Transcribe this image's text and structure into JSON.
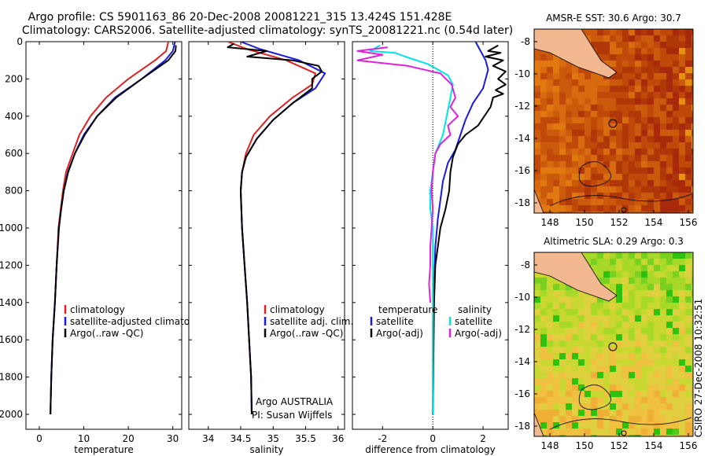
{
  "title": {
    "line1": "Argo profile: CS 5901163_86 20-Dec-2008 20081221_315 13.424S 151.428E",
    "line2": "Climatology: CARS2006. Satellite-adjusted climatology: synTS_20081221.nc (0.54d later)"
  },
  "footer_stamp": "CSIRO 27-Dec-2008 10:32:51",
  "colors": {
    "clim": "#e02020",
    "sat": "#1a1ae0",
    "argo": "#000000",
    "sat_s": "#00e5e5",
    "argo_s": "#e020e0"
  },
  "chart_data": [
    {
      "type": "line",
      "xlabel": "temperature",
      "xlim": [
        -3,
        32
      ],
      "ylim": [
        0,
        2080
      ],
      "xticks": [
        0,
        10,
        20,
        30
      ],
      "yticks": [
        0,
        200,
        400,
        600,
        800,
        1000,
        1200,
        1400,
        1600,
        1800,
        2000
      ],
      "legend": [
        "climatology",
        "satellite-adjusted climatology",
        "Argo(..raw -QC)"
      ],
      "series": [
        {
          "name": "climatology",
          "color": "clim",
          "points": [
            [
              29,
              0
            ],
            [
              28.5,
              50
            ],
            [
              26,
              100
            ],
            [
              20,
              200
            ],
            [
              15,
              300
            ],
            [
              11.5,
              400
            ],
            [
              9,
              500
            ],
            [
              7.5,
              600
            ],
            [
              6,
              700
            ],
            [
              5.3,
              800
            ],
            [
              4.8,
              900
            ],
            [
              4.3,
              1000
            ],
            [
              3.9,
              1200
            ],
            [
              3.5,
              1400
            ],
            [
              3,
              1600
            ],
            [
              2.7,
              1800
            ],
            [
              2.5,
              2000
            ]
          ]
        },
        {
          "name": "satellite-adjusted climatology",
          "color": "sat",
          "points": [
            [
              30.5,
              0
            ],
            [
              30,
              50
            ],
            [
              28.3,
              100
            ],
            [
              23,
              200
            ],
            [
              17,
              300
            ],
            [
              13,
              400
            ],
            [
              10,
              500
            ],
            [
              8,
              600
            ],
            [
              6.4,
              700
            ],
            [
              5.5,
              800
            ],
            [
              4.9,
              900
            ],
            [
              4.4,
              1000
            ],
            [
              3.9,
              1200
            ],
            [
              3.5,
              1400
            ],
            [
              3,
              1600
            ],
            [
              2.7,
              1800
            ],
            [
              2.5,
              2000
            ]
          ]
        },
        {
          "name": "Argo(..raw -QC)",
          "color": "argo",
          "points": [
            [
              30.7,
              20
            ],
            [
              30.6,
              50
            ],
            [
              29,
              100
            ],
            [
              23,
              200
            ],
            [
              17.3,
              300
            ],
            [
              13,
              400
            ],
            [
              10.2,
              500
            ],
            [
              8,
              600
            ],
            [
              6.5,
              700
            ],
            [
              5.5,
              800
            ],
            [
              4.9,
              900
            ],
            [
              4.4,
              1000
            ],
            [
              3.9,
              1200
            ],
            [
              3.5,
              1400
            ],
            [
              3,
              1600
            ],
            [
              2.7,
              1800
            ],
            [
              2.5,
              2000
            ]
          ]
        }
      ]
    },
    {
      "type": "line",
      "xlabel": "salinity",
      "xlim": [
        33.7,
        36.1
      ],
      "ylim": [
        0,
        2080
      ],
      "xticks": [
        34,
        34.5,
        35,
        35.5,
        36
      ],
      "yticks": [
        0,
        200,
        400,
        600,
        800,
        1000,
        1200,
        1400,
        1600,
        1800,
        2000
      ],
      "legend": [
        "climatology",
        "satellite adj. clim.",
        "Argo(..raw -QC)"
      ],
      "annotation": [
        "Argo AUSTRALIA",
        "PI: Susan Wijffels"
      ],
      "series": [
        {
          "name": "climatology",
          "color": "clim",
          "points": [
            [
              34.3,
              0
            ],
            [
              34.6,
              40
            ],
            [
              35.2,
              100
            ],
            [
              35.65,
              170
            ],
            [
              35.6,
              230
            ],
            [
              35.3,
              300
            ],
            [
              34.95,
              400
            ],
            [
              34.7,
              500
            ],
            [
              34.58,
              600
            ],
            [
              34.52,
              700
            ],
            [
              34.5,
              800
            ],
            [
              34.52,
              1000
            ],
            [
              34.56,
              1200
            ],
            [
              34.6,
              1400
            ],
            [
              34.63,
              1600
            ],
            [
              34.66,
              1800
            ],
            [
              34.67,
              2000
            ]
          ]
        },
        {
          "name": "satellite adj. clim.",
          "color": "sat",
          "points": [
            [
              34.5,
              0
            ],
            [
              34.8,
              40
            ],
            [
              35.4,
              100
            ],
            [
              35.8,
              170
            ],
            [
              35.65,
              250
            ],
            [
              35.3,
              330
            ],
            [
              35,
              420
            ],
            [
              34.75,
              520
            ],
            [
              34.58,
              620
            ],
            [
              34.52,
              700
            ],
            [
              34.5,
              800
            ],
            [
              34.52,
              1000
            ],
            [
              34.56,
              1200
            ],
            [
              34.6,
              1400
            ],
            [
              34.63,
              1600
            ],
            [
              34.66,
              1800
            ],
            [
              34.67,
              2000
            ]
          ]
        },
        {
          "name": "Argo(..raw -QC)",
          "color": "argo",
          "points": [
            [
              34.4,
              10
            ],
            [
              34.3,
              30
            ],
            [
              34.9,
              50
            ],
            [
              34.6,
              80
            ],
            [
              35.3,
              100
            ],
            [
              35.7,
              130
            ],
            [
              35.75,
              160
            ],
            [
              35.6,
              200
            ],
            [
              35.6,
              250
            ],
            [
              35.3,
              330
            ],
            [
              35,
              420
            ],
            [
              34.75,
              520
            ],
            [
              34.58,
              620
            ],
            [
              34.52,
              700
            ],
            [
              34.5,
              800
            ],
            [
              34.52,
              1000
            ],
            [
              34.56,
              1200
            ],
            [
              34.6,
              1400
            ],
            [
              34.63,
              1600
            ],
            [
              34.66,
              1800
            ],
            [
              34.67,
              2000
            ]
          ]
        }
      ]
    },
    {
      "type": "line",
      "xlabel": "difference from climatology",
      "xlim": [
        -3.2,
        3.0
      ],
      "ylim": [
        0,
        2080
      ],
      "xticks": [
        -2,
        0,
        2
      ],
      "yticks": [
        0,
        200,
        400,
        600,
        800,
        1000,
        1200,
        1400,
        1600,
        1800,
        2000
      ],
      "zero_line": 0,
      "legend_left_title": "temperature",
      "legend_right_title": "salinity",
      "legend_left": [
        "satellite",
        "Argo(-adj)"
      ],
      "legend_right": [
        "satellite",
        "Argo(-adj)"
      ],
      "series": [
        {
          "name": "temperature satellite",
          "color": "sat",
          "points": [
            [
              1.7,
              0
            ],
            [
              1.9,
              50
            ],
            [
              2.1,
              100
            ],
            [
              2.2,
              150
            ],
            [
              2,
              250
            ],
            [
              1.6,
              330
            ],
            [
              1.3,
              420
            ],
            [
              1.1,
              500
            ],
            [
              0.9,
              580
            ],
            [
              0.6,
              650
            ],
            [
              0.4,
              750
            ],
            [
              0.3,
              850
            ],
            [
              0.2,
              950
            ],
            [
              0.1,
              1100
            ],
            [
              0.05,
              1300
            ],
            [
              0,
              1500
            ],
            [
              0,
              2000
            ]
          ]
        },
        {
          "name": "temperature Argo(-adj)",
          "color": "argo",
          "points": [
            [
              2.6,
              20
            ],
            [
              2.2,
              50
            ],
            [
              2.7,
              60
            ],
            [
              2.1,
              80
            ],
            [
              2.8,
              100
            ],
            [
              2.4,
              130
            ],
            [
              2.9,
              160
            ],
            [
              2.6,
              200
            ],
            [
              2.9,
              230
            ],
            [
              2.5,
              260
            ],
            [
              2.8,
              280
            ],
            [
              2.4,
              300
            ],
            [
              2.3,
              350
            ],
            [
              1.8,
              450
            ],
            [
              1.3,
              500
            ],
            [
              1,
              550
            ],
            [
              0.8,
              620
            ],
            [
              0.7,
              700
            ],
            [
              0.65,
              800
            ],
            [
              0.5,
              900
            ],
            [
              0.3,
              1000
            ],
            [
              0.2,
              1100
            ],
            [
              0.1,
              1200
            ],
            [
              0.05,
              1400
            ],
            [
              0,
              2000
            ]
          ]
        },
        {
          "name": "salinity satellite",
          "color": "sat_s",
          "points": [
            [
              -2.1,
              20
            ],
            [
              -2.5,
              50
            ],
            [
              -1.5,
              60
            ],
            [
              -1.1,
              80
            ],
            [
              -0.2,
              120
            ],
            [
              0.6,
              180
            ],
            [
              0.8,
              230
            ],
            [
              0.7,
              300
            ],
            [
              0.55,
              400
            ],
            [
              0.4,
              500
            ],
            [
              0.1,
              600
            ],
            [
              0,
              700
            ],
            [
              -0.1,
              800
            ],
            [
              -0.1,
              900
            ],
            [
              0,
              1000
            ],
            [
              0,
              2000
            ]
          ]
        },
        {
          "name": "salinity Argo(-adj)",
          "color": "argo_s",
          "points": [
            [
              -1.8,
              30
            ],
            [
              -3,
              50
            ],
            [
              -2,
              70
            ],
            [
              -3,
              100
            ],
            [
              -1,
              130
            ],
            [
              0.3,
              170
            ],
            [
              0.75,
              230
            ],
            [
              0.9,
              300
            ],
            [
              0.7,
              350
            ],
            [
              1,
              400
            ],
            [
              0.6,
              450
            ],
            [
              0.7,
              500
            ],
            [
              0.3,
              550
            ],
            [
              0.1,
              600
            ],
            [
              0,
              700
            ],
            [
              -0.05,
              800
            ],
            [
              0,
              900
            ],
            [
              -0.05,
              1000
            ],
            [
              -0.1,
              1100
            ],
            [
              -0.1,
              1200
            ],
            [
              -0.15,
              1300
            ],
            [
              -0.1,
              1400
            ]
          ]
        }
      ]
    }
  ],
  "maps": [
    {
      "title": "AMSR-E SST: 30.6 Argo: 30.7",
      "xticks": [
        "148",
        "150",
        "152",
        "154",
        "156"
      ],
      "yticks": [
        "-8",
        "-10",
        "-12",
        "-14",
        "-16",
        "-18"
      ],
      "theme": "sst"
    },
    {
      "title": "Altimetric SLA: 0.29 Argo: 0.3",
      "xticks": [
        "148",
        "150",
        "152",
        "154",
        "156"
      ],
      "yticks": [
        "-8",
        "-10",
        "-12",
        "-14",
        "-16",
        "-18"
      ],
      "theme": "sla"
    }
  ]
}
